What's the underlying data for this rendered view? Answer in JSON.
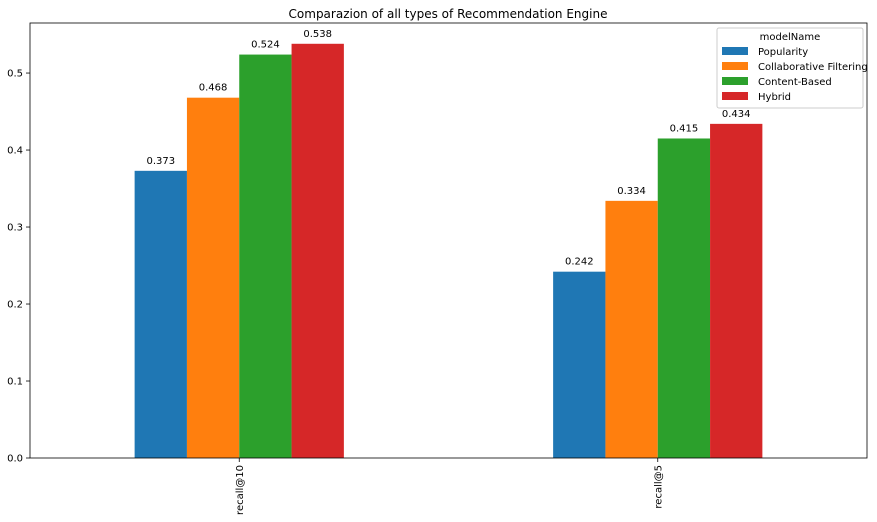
{
  "chart_data": {
    "type": "bar",
    "title": "Comparazion of all types of Recommendation Engine",
    "categories": [
      "recall@10",
      "recall@5"
    ],
    "series": [
      {
        "name": "Popularity",
        "values": [
          0.373,
          0.242
        ],
        "color": "#1f77b4"
      },
      {
        "name": "Collaborative Filtering",
        "values": [
          0.468,
          0.334
        ],
        "color": "#ff7f0e"
      },
      {
        "name": "Content-Based",
        "values": [
          0.524,
          0.415
        ],
        "color": "#2ca02c"
      },
      {
        "name": "Hybrid",
        "values": [
          0.538,
          0.434
        ],
        "color": "#d62728"
      }
    ],
    "value_labels": [
      [
        "0.373",
        "0.242"
      ],
      [
        "0.468",
        "0.334"
      ],
      [
        "0.524",
        "0.415"
      ],
      [
        "0.538",
        "0.434"
      ]
    ],
    "yticks": [
      0.0,
      0.1,
      0.2,
      0.3,
      0.4,
      0.5
    ],
    "ytick_labels": [
      "0.0",
      "0.1",
      "0.2",
      "0.3",
      "0.4",
      "0.5"
    ],
    "ylim": [
      0,
      0.565
    ],
    "grid": false,
    "legend": {
      "title": "modelName",
      "position": "top-right"
    },
    "xlabel": "",
    "ylabel": ""
  }
}
